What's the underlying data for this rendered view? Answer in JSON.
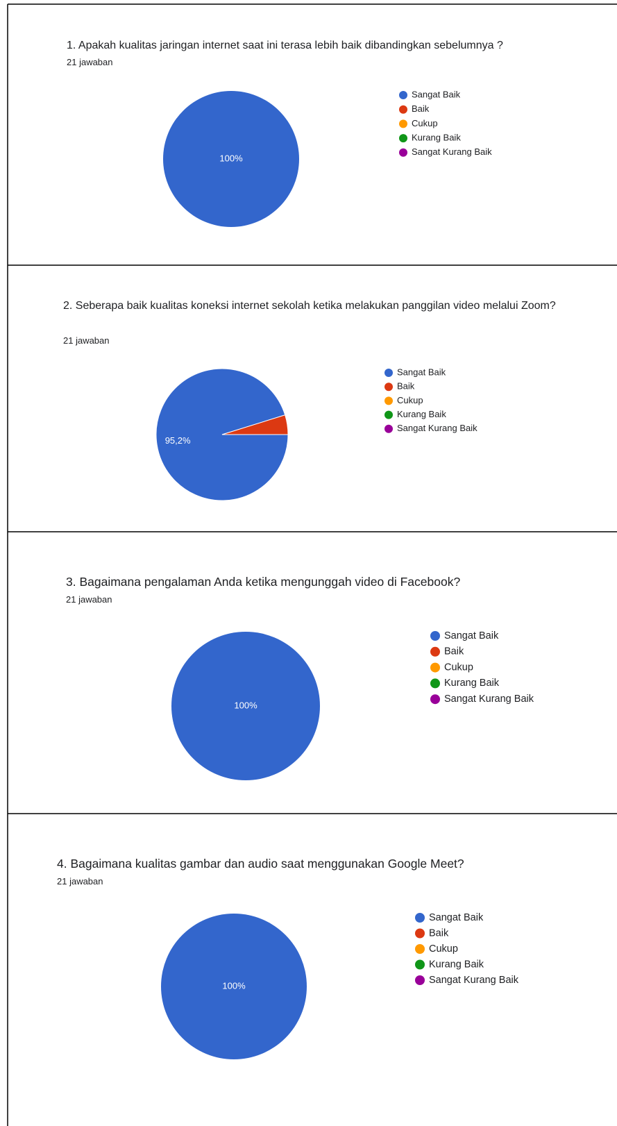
{
  "chart_data": [
    {
      "type": "pie",
      "title": "1. Apakah kualitas jaringan internet saat ini terasa lebih baik dibandingkan sebelumnya ?",
      "subtitle": "21 jawaban",
      "categories": [
        "Sangat Baik",
        "Baik",
        "Cukup",
        "Kurang Baik",
        "Sangat Kurang Baik"
      ],
      "values": [
        100,
        0,
        0,
        0,
        0
      ],
      "value_labels": [
        "100%",
        null,
        null,
        null,
        null
      ],
      "colors": [
        "#3366cc",
        "#dc3912",
        "#ff9900",
        "#109618",
        "#990099"
      ]
    },
    {
      "type": "pie",
      "title": "2.  Seberapa baik kualitas koneksi internet sekolah ketika melakukan panggilan video melalui Zoom?",
      "subtitle": "21 jawaban",
      "categories": [
        "Sangat Baik",
        "Baik",
        "Cukup",
        "Kurang Baik",
        "Sangat Kurang Baik"
      ],
      "values": [
        95.2,
        4.8,
        0,
        0,
        0
      ],
      "value_labels": [
        "95,2%",
        null,
        null,
        null,
        null
      ],
      "colors": [
        "#3366cc",
        "#dc3912",
        "#ff9900",
        "#109618",
        "#990099"
      ]
    },
    {
      "type": "pie",
      "title": "3.  Bagaimana pengalaman Anda ketika mengunggah video di Facebook?",
      "subtitle": "21 jawaban",
      "categories": [
        "Sangat Baik",
        "Baik",
        "Cukup",
        "Kurang Baik",
        "Sangat Kurang Baik"
      ],
      "values": [
        100,
        0,
        0,
        0,
        0
      ],
      "value_labels": [
        "100%",
        null,
        null,
        null,
        null
      ],
      "colors": [
        "#3366cc",
        "#dc3912",
        "#ff9900",
        "#109618",
        "#990099"
      ]
    },
    {
      "type": "pie",
      "title": "4.  Bagaimana kualitas gambar dan audio saat menggunakan Google Meet?",
      "subtitle": "21 jawaban",
      "categories": [
        "Sangat Baik",
        "Baik",
        "Cukup",
        "Kurang Baik",
        "Sangat Kurang Baik"
      ],
      "values": [
        100,
        0,
        0,
        0,
        0
      ],
      "value_labels": [
        "100%",
        null,
        null,
        null,
        null
      ],
      "colors": [
        "#3366cc",
        "#dc3912",
        "#ff9900",
        "#109618",
        "#990099"
      ]
    }
  ]
}
